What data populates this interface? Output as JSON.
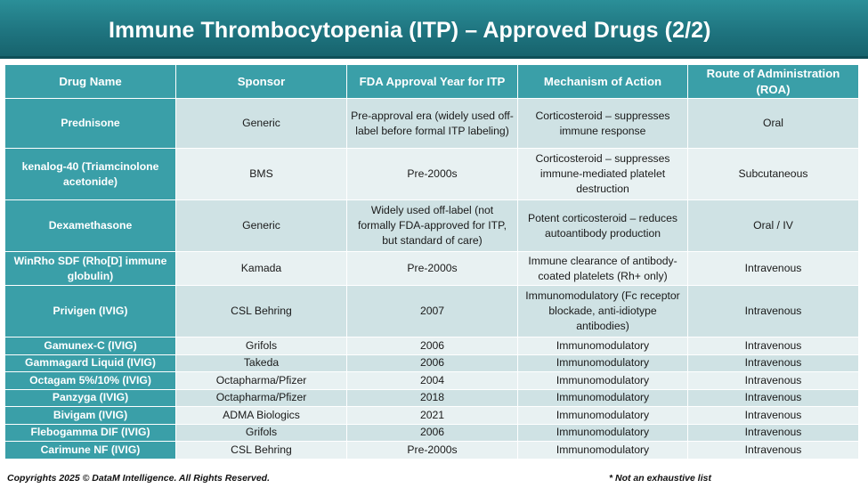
{
  "header": {
    "title": "Immune Thrombocytopenia (ITP) – Approved Drugs (2/2)"
  },
  "table": {
    "columns": [
      "Drug Name",
      "Sponsor",
      "FDA Approval Year for ITP",
      "Mechanism of Action",
      "Route of Administration (ROA)"
    ],
    "rows": [
      {
        "drug": "Prednisone",
        "sponsor": "Generic",
        "year": "Pre-approval era (widely used off-label before formal ITP labeling)",
        "mechanism": "Corticosteroid – suppresses immune response",
        "route": "Oral"
      },
      {
        "drug": "kenalog-40 (Triamcinolone acetonide)",
        "sponsor": "BMS",
        "year": "Pre-2000s",
        "mechanism": "Corticosteroid – suppresses immune-mediated platelet destruction",
        "route": "Subcutaneous"
      },
      {
        "drug": "Dexamethasone",
        "sponsor": "Generic",
        "year": "Widely used off-label (not formally FDA-approved for ITP, but standard of care)",
        "mechanism": "Potent corticosteroid – reduces autoantibody production",
        "route": "Oral / IV"
      },
      {
        "drug": "WinRho SDF (Rho[D] immune globulin)",
        "sponsor": "Kamada",
        "year": "Pre-2000s",
        "mechanism": "Immune clearance of antibody-coated platelets (Rh+ only)",
        "route": "Intravenous"
      },
      {
        "drug": "Privigen (IVIG)",
        "sponsor": "CSL Behring",
        "year": "2007",
        "mechanism": "Immunomodulatory (Fc receptor blockade, anti-idiotype antibodies)",
        "route": "Intravenous"
      },
      {
        "drug": "Gamunex-C (IVIG)",
        "sponsor": "Grifols",
        "year": "2006",
        "mechanism": "Immunomodulatory",
        "route": "Intravenous"
      },
      {
        "drug": "Gammagard Liquid (IVIG)",
        "sponsor": "Takeda",
        "year": "2006",
        "mechanism": "Immunomodulatory",
        "route": "Intravenous"
      },
      {
        "drug": "Octagam 5%/10% (IVIG)",
        "sponsor": "Octapharma/Pfizer",
        "year": "2004",
        "mechanism": "Immunomodulatory",
        "route": "Intravenous"
      },
      {
        "drug": "Panzyga (IVIG)",
        "sponsor": "Octapharma/Pfizer",
        "year": "2018",
        "mechanism": "Immunomodulatory",
        "route": "Intravenous"
      },
      {
        "drug": "Bivigam (IVIG)",
        "sponsor": "ADMA Biologics",
        "year": "2021",
        "mechanism": "Immunomodulatory",
        "route": "Intravenous"
      },
      {
        "drug": "Flebogamma DIF (IVIG)",
        "sponsor": "Grifols",
        "year": "2006",
        "mechanism": "Immunomodulatory",
        "route": "Intravenous"
      },
      {
        "drug": "Carimune NF (IVIG)",
        "sponsor": "CSL Behring",
        "year": "Pre-2000s",
        "mechanism": "Immunomodulatory",
        "route": "Intravenous"
      }
    ]
  },
  "footer": {
    "copyright": "Copyrights 2025 © DataM Intelligence. All Rights Reserved.",
    "note": "* Not an exhaustive list"
  }
}
